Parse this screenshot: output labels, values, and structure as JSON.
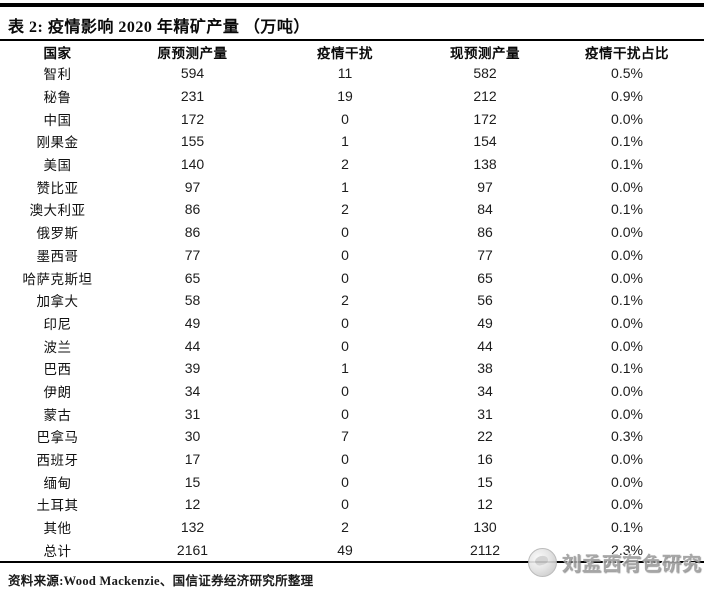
{
  "colors": {
    "rule_black": "#000000",
    "text_black": "#161616",
    "watermark_gray": "#9e9e9e",
    "background": "#ffffff"
  },
  "header": {
    "title": "表 2: 疫情影响 2020 年精矿产量 （万吨）"
  },
  "table": {
    "columns": [
      "国家",
      "原预测产量",
      "疫情干扰",
      "现预测产量",
      "疫情干扰占比"
    ],
    "rows": [
      {
        "country": "智利",
        "original": "594",
        "disruption": "11",
        "current": "582",
        "pct": "0.5%"
      },
      {
        "country": "秘鲁",
        "original": "231",
        "disruption": "19",
        "current": "212",
        "pct": "0.9%"
      },
      {
        "country": "中国",
        "original": "172",
        "disruption": "0",
        "current": "172",
        "pct": "0.0%"
      },
      {
        "country": "刚果金",
        "original": "155",
        "disruption": "1",
        "current": "154",
        "pct": "0.1%"
      },
      {
        "country": "美国",
        "original": "140",
        "disruption": "2",
        "current": "138",
        "pct": "0.1%"
      },
      {
        "country": "赞比亚",
        "original": "97",
        "disruption": "1",
        "current": "97",
        "pct": "0.0%"
      },
      {
        "country": "澳大利亚",
        "original": "86",
        "disruption": "2",
        "current": "84",
        "pct": "0.1%"
      },
      {
        "country": "俄罗斯",
        "original": "86",
        "disruption": "0",
        "current": "86",
        "pct": "0.0%"
      },
      {
        "country": "墨西哥",
        "original": "77",
        "disruption": "0",
        "current": "77",
        "pct": "0.0%"
      },
      {
        "country": "哈萨克斯坦",
        "original": "65",
        "disruption": "0",
        "current": "65",
        "pct": "0.0%"
      },
      {
        "country": "加拿大",
        "original": "58",
        "disruption": "2",
        "current": "56",
        "pct": "0.1%"
      },
      {
        "country": "印尼",
        "original": "49",
        "disruption": "0",
        "current": "49",
        "pct": "0.0%"
      },
      {
        "country": "波兰",
        "original": "44",
        "disruption": "0",
        "current": "44",
        "pct": "0.0%"
      },
      {
        "country": "巴西",
        "original": "39",
        "disruption": "1",
        "current": "38",
        "pct": "0.1%"
      },
      {
        "country": "伊朗",
        "original": "34",
        "disruption": "0",
        "current": "34",
        "pct": "0.0%"
      },
      {
        "country": "蒙古",
        "original": "31",
        "disruption": "0",
        "current": "31",
        "pct": "0.0%"
      },
      {
        "country": "巴拿马",
        "original": "30",
        "disruption": "7",
        "current": "22",
        "pct": "0.3%"
      },
      {
        "country": "西班牙",
        "original": "17",
        "disruption": "0",
        "current": "16",
        "pct": "0.0%"
      },
      {
        "country": "缅甸",
        "original": "15",
        "disruption": "0",
        "current": "15",
        "pct": "0.0%"
      },
      {
        "country": "土耳其",
        "original": "12",
        "disruption": "0",
        "current": "12",
        "pct": "0.0%"
      },
      {
        "country": "其他",
        "original": "132",
        "disruption": "2",
        "current": "130",
        "pct": "0.1%"
      },
      {
        "country": "总计",
        "original": "2161",
        "disruption": "49",
        "current": "2112",
        "pct": "2.3%"
      }
    ]
  },
  "footer": {
    "source_text": "资料来源:Wood Mackenzie、国信证券经济研究所整理"
  },
  "watermark": {
    "icon": "circle-seal-icon",
    "text": "刘孟西有色研究"
  }
}
